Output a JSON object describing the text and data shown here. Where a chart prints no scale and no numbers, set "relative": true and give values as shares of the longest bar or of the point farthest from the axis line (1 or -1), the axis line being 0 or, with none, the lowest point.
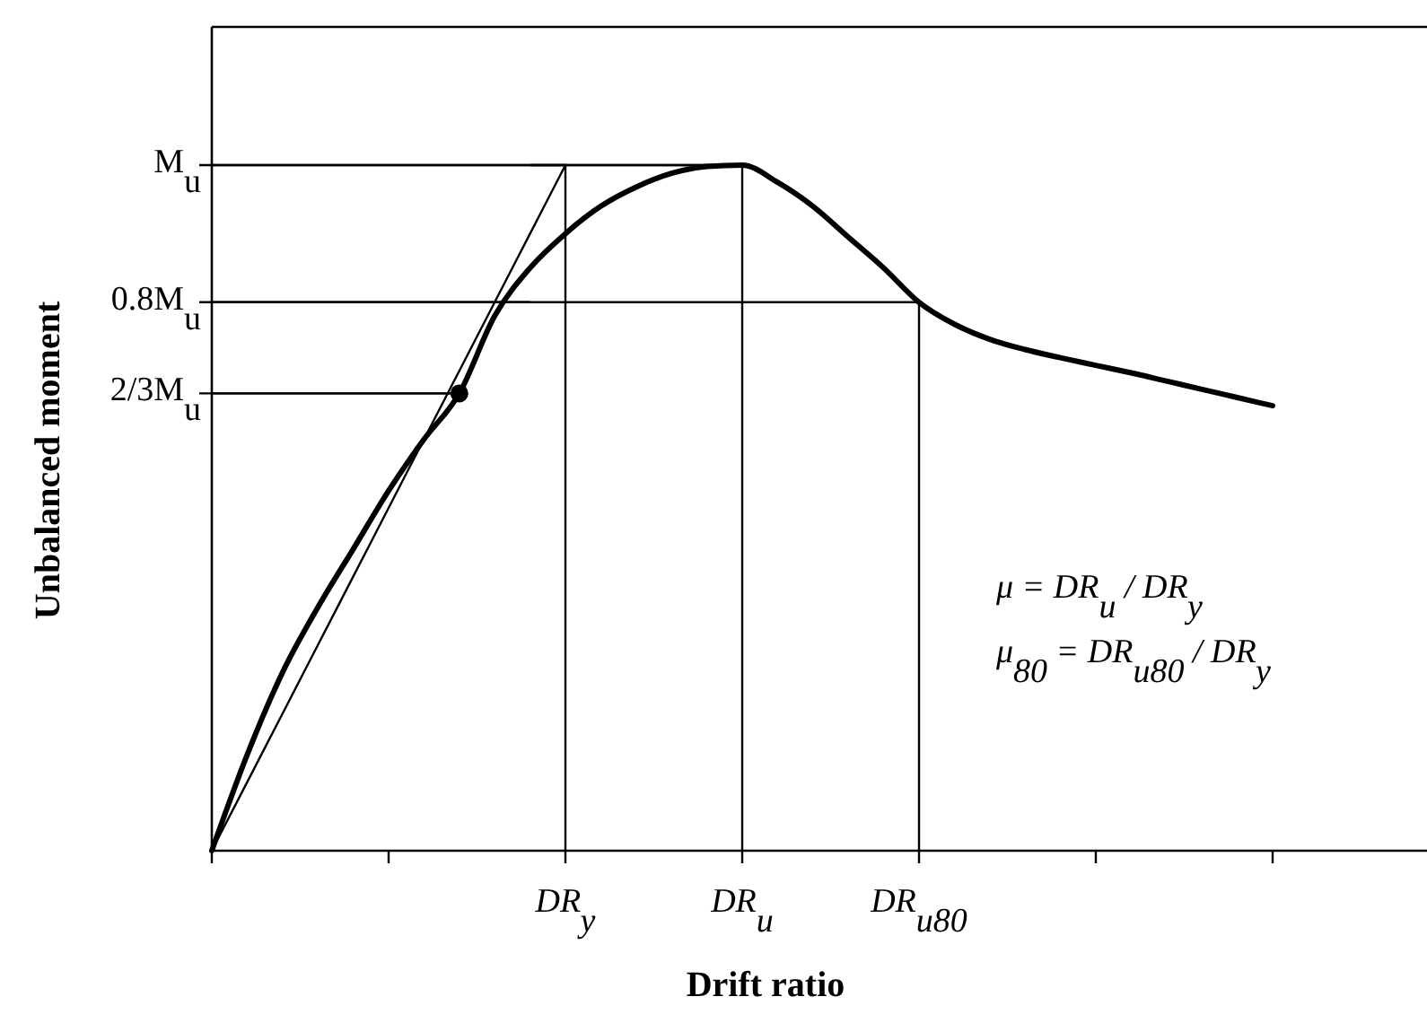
{
  "chart_data": {
    "type": "line",
    "relative": true,
    "xlabel": "Drift ratio",
    "ylabel": "Unbalanced moment",
    "categories": [
      null,
      null,
      null,
      null,
      null,
      null,
      null,
      null,
      null,
      null,
      "DR$_{y}$",
      null,
      null,
      null,
      null,
      "DR$_{u}$",
      null,
      null,
      null,
      null,
      "DR$_{u80}$",
      null,
      null,
      null,
      null,
      null,
      null,
      null,
      null,
      null,
      null,
      null,
      null,
      null,
      null
    ],
    "ref_lines": [
      {
        "axis": "y",
        "value": 1,
        "label": "M$_{u}$"
      },
      {
        "axis": "y",
        "value": 0.8,
        "label": "0.8M$_{u}$"
      },
      {
        "axis": "y",
        "value": 0.667,
        "label": "2/3M$_{u}$"
      }
    ],
    "annotations": [
      "μ = DR$_{u}$ / DR$_{y}$",
      "μ$_{80}$ = DR$_{u80}$ / DR$_{y}$"
    ],
    "series": [
      {
        "color": "#000000",
        "values": [
          0,
          0.14,
          0.26,
          0.355,
          0.44,
          0.525,
          0.6,
          0.667,
          0.78,
          0.85,
          0.9,
          0.94,
          0.968,
          0.988,
          0.998,
          1.0,
          0.975,
          0.94,
          0.895,
          0.85,
          0.8,
          0.768,
          0.746,
          0.731,
          0.719,
          0.708,
          0.697,
          0.685,
          0.673,
          0.661,
          0.649,
          null,
          null,
          null,
          null
        ]
      },
      {
        "type": "line",
        "color": "#000000",
        "values": [
          0,
          0.1,
          0.2,
          0.3,
          0.4,
          0.5,
          0.6,
          0.7,
          0.8,
          0.9,
          1.0,
          null,
          null,
          null,
          null,
          null,
          null,
          null,
          null,
          null,
          null,
          null,
          null,
          null,
          null,
          null,
          null,
          null,
          null,
          null,
          null,
          null,
          null,
          null,
          null
        ]
      },
      {
        "type": "step",
        "color": "#000000",
        "values": [
          1,
          1,
          1,
          1,
          1,
          1,
          1,
          1,
          1,
          1,
          1,
          1,
          1,
          1,
          1,
          0,
          null,
          null,
          null,
          null,
          null,
          null,
          null,
          null,
          null,
          null,
          null,
          null,
          null,
          null,
          null,
          null,
          null,
          null,
          null
        ]
      },
      {
        "type": "step",
        "color": "#000000",
        "values": [
          null,
          null,
          null,
          null,
          null,
          null,
          null,
          null,
          null,
          1,
          0,
          null,
          null,
          null,
          null,
          null,
          null,
          null,
          null,
          null,
          null,
          null,
          null,
          null,
          null,
          null,
          null,
          null,
          null,
          null,
          null,
          null,
          null,
          null,
          null
        ]
      },
      {
        "type": "step",
        "color": "#000000",
        "values": [
          0.8,
          0.8,
          0.8,
          0.8,
          0.8,
          0.8,
          0.8,
          0.8,
          0.8,
          0.8,
          0.8,
          0.8,
          0.8,
          0.8,
          0.8,
          0.8,
          0.8,
          0.8,
          0.8,
          0.8,
          0,
          null,
          null,
          null,
          null,
          null,
          null,
          null,
          null,
          null,
          null,
          null,
          null,
          null,
          null
        ]
      },
      {
        "type": "line",
        "color": "#000000",
        "values": [
          0.667,
          0.667,
          0.667,
          0.667,
          0.667,
          0.667,
          0.667,
          0.667,
          null,
          null,
          null,
          null,
          null,
          null,
          null,
          null,
          null,
          null,
          null,
          null,
          null,
          null,
          null,
          null,
          null,
          null,
          null,
          null,
          null,
          null,
          null,
          null,
          null,
          null,
          null
        ]
      },
      {
        "type": "scatter",
        "color": "#000000",
        "values": [
          null,
          null,
          null,
          null,
          null,
          null,
          null,
          0.667,
          null,
          null,
          null,
          null,
          null,
          null,
          null,
          null,
          null,
          null,
          null,
          null,
          null,
          null,
          null,
          null,
          null,
          null,
          null,
          null,
          null,
          null,
          null,
          null,
          null,
          null,
          null
        ]
      }
    ]
  }
}
